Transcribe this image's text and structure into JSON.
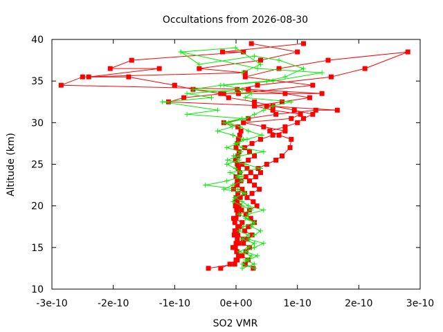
{
  "chart_data": {
    "type": "line",
    "title": "Occultations from 2026-08-30",
    "xlabel": "SO2 VMR",
    "ylabel": "Altitude (km)",
    "xlim": [
      -3e-10,
      3e-10
    ],
    "ylim": [
      10,
      40
    ],
    "x_ticks": [
      -3e-10,
      -2e-10,
      -1e-10,
      0,
      1e-10,
      2e-10,
      3e-10
    ],
    "x_tick_labels": [
      "-3e-10",
      "-2e-10",
      "-1e-10",
      "0e+00",
      "1e-10",
      "2e-10",
      "3e-10"
    ],
    "y_ticks": [
      10,
      15,
      20,
      25,
      30,
      35,
      40
    ],
    "y_tick_labels": [
      "10",
      "15",
      "20",
      "25",
      "30",
      "35",
      "40"
    ],
    "grid": false,
    "colors": {
      "red_series": "#ff0000",
      "green_series": "#00ee00"
    },
    "series": [
      {
        "marker": "square",
        "color": "#ff0000",
        "profiles": [
          {
            "x": [
              -4.5e-11,
              -2e-12,
              2e-12,
              4e-12,
              1e-12,
              -1e-12,
              0,
              2e-12,
              -3e-12,
              1e-12,
              3e-12,
              -2e-12,
              0,
              4e-12,
              1e-12,
              -1e-12,
              2e-12,
              0,
              3e-12,
              -4e-12,
              1e-12,
              2e-12,
              0,
              6e-12,
              4e-12,
              2e-12,
              -1e-12,
              3e-12,
              5e-12,
              0,
              2e-12,
              4e-12,
              6e-12,
              8e-12,
              3e-12,
              -2e-11,
              2e-11,
              6.5e-11,
              1.3e-10,
              1.65e-10,
              5e-11,
              -1.1e-10,
              -8.5e-11,
              -2e-11,
              1.4e-10,
              2e-11,
              -2.85e-10,
              -2.5e-10,
              1.5e-11,
              -6e-11,
              4e-11,
              1e-10,
              2.5e-11
            ],
            "y": [
              12.5,
              13.0,
              13.5,
              14.0,
              14.5,
              15.0,
              15.5,
              16.0,
              16.5,
              17.0,
              17.5,
              18.0,
              18.5,
              19.0,
              19.5,
              20.0,
              20.5,
              21.0,
              21.5,
              22.0,
              22.5,
              23.0,
              23.5,
              24.0,
              24.5,
              25.0,
              25.5,
              26.0,
              26.5,
              27.0,
              27.5,
              28.0,
              28.5,
              29.0,
              29.5,
              30.0,
              30.5,
              31.0,
              31.5,
              31.5,
              32.0,
              32.5,
              33.0,
              33.5,
              33.5,
              34.0,
              34.5,
              35.5,
              36.0,
              36.5,
              37.5,
              38.5,
              39.5
            ]
          },
          {
            "x": [
              -2.5e-11,
              -1e-11,
              0,
              8e-12,
              2e-12,
              -5e-12,
              4e-12,
              1.2e-11,
              3e-12,
              -2e-12,
              6e-12,
              1e-11,
              -4e-12,
              3e-12,
              9e-12,
              5e-12,
              0,
              7e-12,
              1.4e-11,
              1e-11,
              2e-12,
              8e-12,
              1.6e-11,
              2.4e-11,
              1.8e-11,
              1e-11,
              2e-11,
              3e-11,
              2.2e-11,
              1.4e-11,
              2.6e-11,
              4e-11,
              6e-11,
              8e-11,
              4.5e-11,
              1.2e-11,
              9e-11,
              1.05e-10,
              6e-11,
              3e-11,
              7.5e-11,
              1.2e-10,
              8e-11,
              2e-12,
              3.5e-11,
              1.55e-10,
              2.1e-10,
              2.8e-10,
              1.5e-10,
              7e-11,
              1.5e-11,
              1.25e-10,
              4e-12
            ],
            "y": [
              12.5,
              13.0,
              13.5,
              14.0,
              14.5,
              15.0,
              15.5,
              16.0,
              16.5,
              17.0,
              17.5,
              18.0,
              18.5,
              19.0,
              19.5,
              20.0,
              20.5,
              21.0,
              21.5,
              22.0,
              22.5,
              23.0,
              23.5,
              24.0,
              24.5,
              25.0,
              25.5,
              26.0,
              26.5,
              27.0,
              27.5,
              28.0,
              28.5,
              29.0,
              29.5,
              30.0,
              30.5,
              31.0,
              31.5,
              32.0,
              32.5,
              33.0,
              33.5,
              34.0,
              34.5,
              35.5,
              36.5,
              38.5,
              37.5,
              36.5,
              35.5,
              34.5,
              33.5
            ]
          },
          {
            "x": [
              2.8e-11,
              1.5e-11,
              2e-11,
              1e-11,
              1.6e-11,
              2.2e-11,
              1.2e-11,
              1.8e-11,
              2.6e-11,
              1.4e-11,
              2e-11,
              3e-11,
              2.4e-11,
              1.6e-11,
              2.2e-11,
              3.4e-11,
              2.8e-11,
              1.8e-11,
              2.6e-11,
              3.8e-11,
              3e-11,
              2.2e-11,
              3.2e-11,
              4e-11,
              3.6e-11,
              5e-11,
              6.5e-11,
              7.5e-11,
              8.8e-11,
              9e-11,
              7e-11,
              5.5e-11,
              8e-11,
              1e-10,
              1.1e-10,
              1.25e-10,
              9.5e-11,
              6e-11,
              3e-11,
              -1.2e-11,
              -2.5e-11,
              -7e-11,
              -1e-10,
              -1.75e-10,
              -2.4e-10,
              -1.25e-10,
              -2.05e-10,
              -1.7e-10,
              1.2e-11,
              -2.2e-11,
              1.1e-10
            ],
            "y": [
              12.5,
              13.0,
              13.5,
              14.0,
              14.5,
              15.0,
              15.5,
              16.0,
              16.5,
              17.0,
              17.5,
              18.0,
              18.5,
              19.0,
              19.5,
              20.0,
              20.5,
              21.0,
              21.5,
              22.0,
              22.5,
              23.0,
              23.5,
              24.0,
              24.5,
              25.0,
              25.5,
              26.0,
              27.0,
              28.0,
              28.5,
              29.0,
              29.5,
              30.0,
              30.5,
              31.0,
              31.5,
              32.0,
              32.5,
              33.0,
              33.5,
              34.0,
              34.5,
              35.5,
              35.5,
              36.5,
              36.5,
              37.5,
              38.5,
              38.5,
              39.5
            ]
          }
        ]
      },
      {
        "marker": "plus",
        "color": "#00ee00",
        "profiles": [
          {
            "x": [
              3e-11,
              1e-11,
              2e-11,
              3.5e-11,
              1.5e-11,
              3e-11,
              4.5e-11,
              2e-11,
              3e-11,
              4e-11,
              2.5e-11,
              3e-11,
              1.5e-11,
              2e-11,
              4.5e-11,
              2e-11,
              1e-11,
              -2e-12,
              1.5e-11,
              -2e-11,
              -5e-12,
              1e-11,
              2e-12,
              8e-12,
              -1e-12,
              -1.5e-11,
              5e-12,
              -4e-12,
              8e-12,
              -1.5e-11,
              3e-12,
              1.2e-11,
              -5e-12,
              -3e-11,
              -6e-12,
              -2e-11,
              1e-11,
              -8e-11,
              -3e-11,
              -1.2e-10,
              -4e-11,
              -8e-11,
              1e-11,
              -2e-11,
              6e-11,
              1.4e-10,
              3.5e-11,
              -9e-11,
              -1e-12,
              4e-11,
              1e-11
            ],
            "y": [
              12.5,
              13.0,
              13.5,
              14.0,
              14.5,
              15.0,
              15.5,
              16.0,
              16.5,
              17.0,
              17.5,
              18.0,
              18.5,
              19.0,
              19.5,
              20.0,
              20.5,
              21.0,
              21.5,
              22.0,
              22.5,
              23.0,
              23.5,
              24.0,
              24.5,
              25.0,
              25.5,
              26.0,
              26.5,
              27.0,
              27.5,
              28.0,
              28.5,
              29.0,
              29.5,
              30.0,
              30.5,
              31.0,
              31.5,
              32.5,
              33.0,
              33.5,
              34.0,
              34.5,
              35.0,
              36.0,
              36.5,
              38.5,
              39.0,
              37.0,
              36.0
            ]
          },
          {
            "x": [
              1e-11,
              3e-11,
              1.5e-11,
              2.5e-11,
              5e-12,
              2e-11,
              3e-11,
              1e-11,
              2e-11,
              5e-12,
              1.2e-11,
              3e-11,
              1.8e-11,
              5e-12,
              2.5e-11,
              1e-11,
              -5e-12,
              -2e-12,
              1.5e-11,
              3e-12,
              -5e-11,
              -1.5e-11,
              1e-11,
              -1e-11,
              4e-11,
              1.6e-11,
              -1.4e-11,
              5e-12,
              4.5e-11,
              1e-11,
              -1e-12,
              1.8e-11,
              4.2e-11,
              2e-11,
              7e-12,
              -1.2e-11,
              1.6e-11,
              3e-11,
              4.5e-11,
              6e-11,
              9e-11,
              1.5e-11,
              2.5e-11,
              -7e-11,
              -2.5e-11,
              5e-11,
              8e-11,
              1.1e-10,
              7e-11,
              3e-11,
              -6e-11,
              -9e-11
            ],
            "y": [
              12.5,
              13.0,
              13.5,
              14.0,
              14.5,
              15.0,
              15.5,
              16.0,
              16.5,
              17.0,
              17.5,
              18.0,
              18.5,
              19.0,
              19.5,
              20.0,
              20.5,
              21.0,
              21.5,
              22.0,
              22.5,
              23.0,
              23.5,
              24.0,
              24.5,
              25.0,
              25.5,
              26.0,
              26.5,
              27.0,
              27.5,
              28.0,
              28.5,
              29.0,
              29.5,
              30.0,
              30.5,
              31.0,
              31.5,
              32.0,
              32.5,
              33.0,
              33.5,
              34.0,
              34.5,
              35.0,
              35.5,
              36.5,
              37.5,
              38.0,
              37.0,
              38.5
            ]
          }
        ]
      }
    ]
  }
}
